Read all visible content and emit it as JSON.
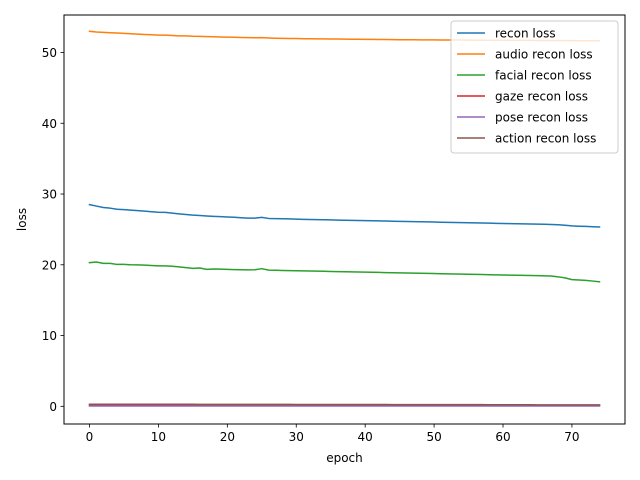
{
  "chart_data": {
    "type": "line",
    "title": "",
    "xlabel": "epoch",
    "ylabel": "loss",
    "xlim": [
      -3.7,
      77.7
    ],
    "ylim": [
      -2.5,
      55.3
    ],
    "xticks": [
      0,
      10,
      20,
      30,
      40,
      50,
      60,
      70
    ],
    "yticks": [
      0,
      10,
      20,
      30,
      40,
      50
    ],
    "grid": false,
    "legend_position": "top-right",
    "x": [
      0,
      1,
      2,
      3,
      4,
      5,
      6,
      7,
      8,
      9,
      10,
      11,
      12,
      13,
      14,
      15,
      16,
      17,
      18,
      19,
      20,
      21,
      22,
      23,
      24,
      25,
      26,
      27,
      28,
      29,
      30,
      31,
      32,
      33,
      34,
      35,
      36,
      37,
      38,
      39,
      40,
      41,
      42,
      43,
      44,
      45,
      46,
      47,
      48,
      49,
      50,
      51,
      52,
      53,
      54,
      55,
      56,
      57,
      58,
      59,
      60,
      61,
      62,
      63,
      64,
      65,
      66,
      67,
      68,
      69,
      70,
      71,
      72,
      73,
      74
    ],
    "series": [
      {
        "name": "recon loss",
        "color": "#1f77b4",
        "values": [
          28.5,
          28.3,
          28.1,
          28.0,
          27.85,
          27.8,
          27.72,
          27.65,
          27.58,
          27.5,
          27.42,
          27.4,
          27.3,
          27.2,
          27.1,
          27.02,
          26.97,
          26.9,
          26.85,
          26.8,
          26.76,
          26.72,
          26.65,
          26.6,
          26.6,
          26.7,
          26.55,
          26.52,
          26.5,
          26.48,
          26.45,
          26.42,
          26.4,
          26.38,
          26.36,
          26.34,
          26.32,
          26.3,
          26.28,
          26.26,
          26.24,
          26.22,
          26.2,
          26.18,
          26.16,
          26.14,
          26.12,
          26.1,
          26.08,
          26.06,
          26.04,
          26.02,
          26.0,
          25.98,
          25.96,
          25.94,
          25.92,
          25.9,
          25.88,
          25.86,
          25.84,
          25.82,
          25.8,
          25.78,
          25.76,
          25.74,
          25.72,
          25.7,
          25.65,
          25.58,
          25.5,
          25.45,
          25.42,
          25.38,
          25.35
        ]
      },
      {
        "name": "audio recon loss",
        "color": "#ff7f0e",
        "values": [
          53.0,
          52.9,
          52.85,
          52.8,
          52.75,
          52.7,
          52.65,
          52.6,
          52.55,
          52.5,
          52.45,
          52.45,
          52.4,
          52.35,
          52.35,
          52.3,
          52.28,
          52.25,
          52.22,
          52.2,
          52.18,
          52.15,
          52.12,
          52.1,
          52.08,
          52.1,
          52.05,
          52.02,
          52.0,
          51.98,
          51.97,
          51.95,
          51.94,
          51.93,
          51.92,
          51.91,
          51.9,
          51.89,
          51.88,
          51.87,
          51.86,
          51.85,
          51.84,
          51.83,
          51.82,
          51.81,
          51.8,
          51.8,
          51.79,
          51.78,
          51.78,
          51.77,
          51.77,
          51.76,
          51.76,
          51.75,
          51.75,
          51.74,
          51.74,
          51.73,
          51.73,
          51.72,
          51.72,
          51.71,
          51.71,
          51.7,
          51.7,
          51.69,
          51.69,
          51.68,
          51.68,
          51.67,
          51.67,
          51.66,
          51.66
        ]
      },
      {
        "name": "facial recon loss",
        "color": "#2ca02c",
        "values": [
          20.3,
          20.4,
          20.2,
          20.2,
          20.05,
          20.05,
          20.0,
          19.98,
          19.95,
          19.9,
          19.85,
          19.85,
          19.8,
          19.7,
          19.6,
          19.5,
          19.55,
          19.35,
          19.4,
          19.38,
          19.35,
          19.32,
          19.3,
          19.28,
          19.3,
          19.45,
          19.25,
          19.22,
          19.2,
          19.18,
          19.16,
          19.14,
          19.12,
          19.1,
          19.08,
          19.06,
          19.04,
          19.02,
          19.0,
          18.98,
          18.96,
          18.94,
          18.92,
          18.9,
          18.88,
          18.86,
          18.84,
          18.82,
          18.8,
          18.78,
          18.76,
          18.74,
          18.72,
          18.7,
          18.68,
          18.66,
          18.64,
          18.62,
          18.6,
          18.58,
          18.56,
          18.54,
          18.52,
          18.5,
          18.48,
          18.46,
          18.44,
          18.42,
          18.3,
          18.15,
          17.9,
          17.85,
          17.8,
          17.7,
          17.6
        ]
      },
      {
        "name": "gaze recon loss",
        "color": "#d62728",
        "values": [
          0.15,
          0.15,
          0.15,
          0.15,
          0.15,
          0.15,
          0.15,
          0.15,
          0.15,
          0.15,
          0.15,
          0.15,
          0.15,
          0.15,
          0.15,
          0.15,
          0.15,
          0.15,
          0.15,
          0.15,
          0.15,
          0.15,
          0.15,
          0.15,
          0.15,
          0.15,
          0.15,
          0.15,
          0.15,
          0.15,
          0.15,
          0.15,
          0.15,
          0.15,
          0.15,
          0.15,
          0.15,
          0.15,
          0.15,
          0.15,
          0.15,
          0.15,
          0.15,
          0.15,
          0.15,
          0.15,
          0.15,
          0.15,
          0.15,
          0.15,
          0.15,
          0.15,
          0.15,
          0.15,
          0.15,
          0.15,
          0.15,
          0.15,
          0.15,
          0.15,
          0.15,
          0.15,
          0.15,
          0.15,
          0.15,
          0.15,
          0.15,
          0.15,
          0.15,
          0.15,
          0.15,
          0.15,
          0.15,
          0.15,
          0.15
        ]
      },
      {
        "name": "pose recon loss",
        "color": "#9467bd",
        "values": [
          0.05,
          0.05,
          0.05,
          0.05,
          0.05,
          0.05,
          0.05,
          0.05,
          0.05,
          0.05,
          0.05,
          0.05,
          0.05,
          0.05,
          0.05,
          0.05,
          0.05,
          0.05,
          0.05,
          0.05,
          0.05,
          0.05,
          0.05,
          0.05,
          0.05,
          0.05,
          0.05,
          0.05,
          0.05,
          0.05,
          0.05,
          0.05,
          0.05,
          0.05,
          0.05,
          0.05,
          0.05,
          0.05,
          0.05,
          0.05,
          0.05,
          0.05,
          0.05,
          0.05,
          0.05,
          0.05,
          0.05,
          0.05,
          0.05,
          0.05,
          0.05,
          0.05,
          0.05,
          0.05,
          0.05,
          0.05,
          0.05,
          0.05,
          0.05,
          0.05,
          0.05,
          0.05,
          0.05,
          0.05,
          0.05,
          0.05,
          0.05,
          0.05,
          0.05,
          0.05,
          0.05,
          0.05,
          0.05,
          0.05,
          0.05
        ]
      },
      {
        "name": "action recon loss",
        "color": "#8c564b",
        "values": [
          0.3,
          0.3,
          0.3,
          0.3,
          0.3,
          0.3,
          0.3,
          0.3,
          0.3,
          0.3,
          0.29,
          0.29,
          0.29,
          0.29,
          0.29,
          0.29,
          0.28,
          0.28,
          0.28,
          0.28,
          0.28,
          0.28,
          0.28,
          0.27,
          0.27,
          0.27,
          0.27,
          0.27,
          0.27,
          0.27,
          0.26,
          0.26,
          0.26,
          0.26,
          0.26,
          0.26,
          0.26,
          0.25,
          0.25,
          0.25,
          0.25,
          0.25,
          0.25,
          0.25,
          0.24,
          0.24,
          0.24,
          0.24,
          0.24,
          0.24,
          0.24,
          0.23,
          0.23,
          0.23,
          0.23,
          0.23,
          0.23,
          0.23,
          0.22,
          0.22,
          0.22,
          0.22,
          0.22,
          0.22,
          0.22,
          0.21,
          0.21,
          0.21,
          0.21,
          0.21,
          0.21,
          0.2,
          0.2,
          0.2,
          0.2
        ]
      }
    ]
  }
}
